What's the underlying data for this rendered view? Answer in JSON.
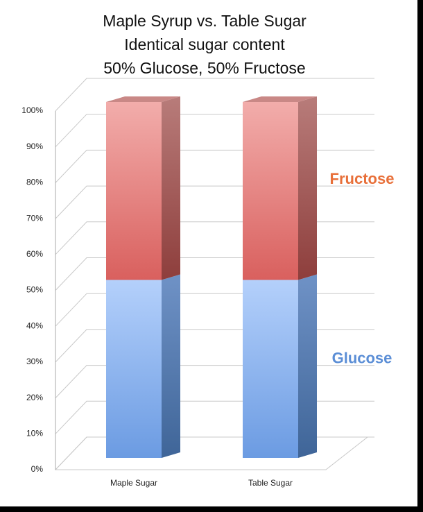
{
  "chart_data": {
    "type": "bar3d_stacked",
    "title": [
      "Maple Syrup vs. Table Sugar",
      "Identical sugar content",
      "50% Glucose, 50% Fructose"
    ],
    "categories": [
      "Maple Sugar",
      "Table Sugar"
    ],
    "series": [
      {
        "name": "Glucose",
        "color": "#5b8ed6",
        "values": [
          50,
          50
        ]
      },
      {
        "name": "Fructose",
        "color": "#e8703a",
        "values": [
          50,
          50
        ]
      }
    ],
    "ylim": [
      0,
      100
    ],
    "yticks": [
      {
        "value": 0,
        "label": "0%"
      },
      {
        "value": 10,
        "label": "10%"
      },
      {
        "value": 20,
        "label": "20%"
      },
      {
        "value": 30,
        "label": "30%"
      },
      {
        "value": 40,
        "label": "40%"
      },
      {
        "value": 50,
        "label": "50%"
      },
      {
        "value": 60,
        "label": "60%"
      },
      {
        "value": 70,
        "label": "70%"
      },
      {
        "value": 80,
        "label": "80%"
      },
      {
        "value": 90,
        "label": "90%"
      },
      {
        "value": 100,
        "label": "100%"
      }
    ],
    "grid": true
  }
}
